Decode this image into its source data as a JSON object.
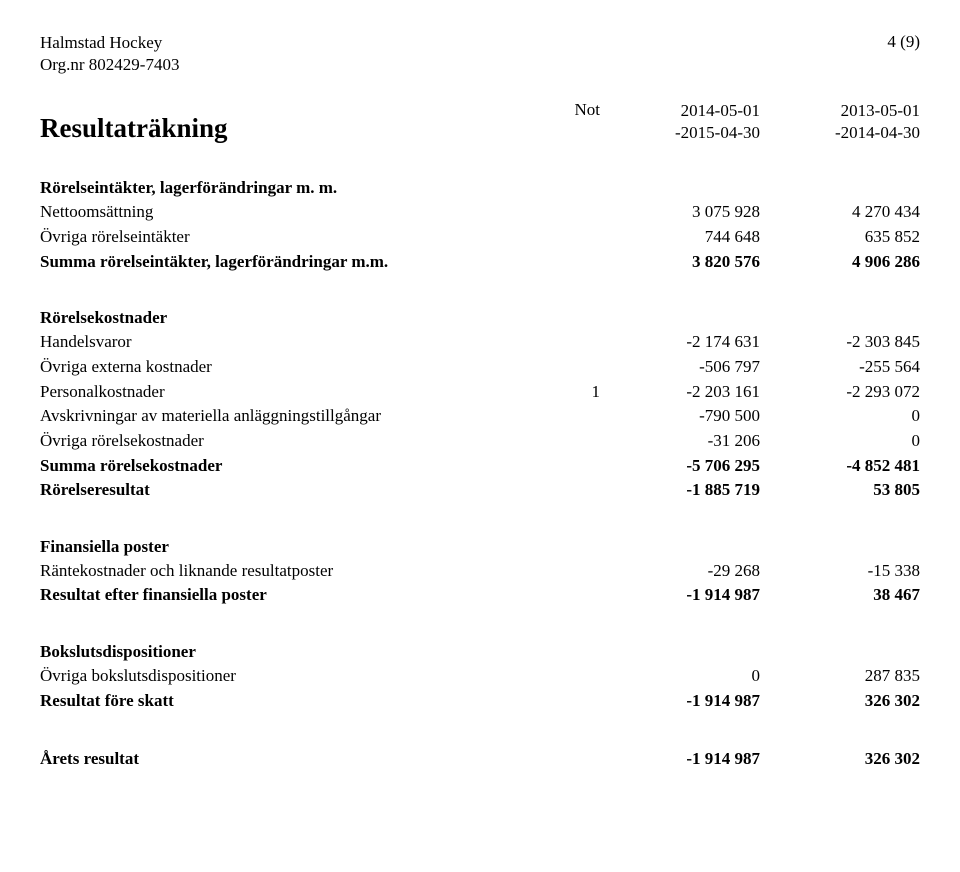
{
  "header": {
    "company": "Halmstad Hockey",
    "orgnr": "Org.nr 802429-7403",
    "page": "4 (9)"
  },
  "title": "Resultaträkning",
  "columns": {
    "note_label": "Not",
    "period1_top": "2014-05-01",
    "period1_bottom": "-2015-04-30",
    "period2_top": "2013-05-01",
    "period2_bottom": "-2014-04-30"
  },
  "sections": {
    "revenue": {
      "heading": "Rörelseintäkter, lagerförändringar m. m.",
      "rows": {
        "net_sales": {
          "label": "Nettoomsättning",
          "c1": "3 075 928",
          "c2": "4 270 434"
        },
        "other_rev": {
          "label": "Övriga rörelseintäkter",
          "c1": "744 648",
          "c2": "635 852"
        },
        "sum_rev": {
          "label": "Summa rörelseintäkter, lagerförändringar m.m.",
          "c1": "3 820 576",
          "c2": "4 906 286"
        }
      }
    },
    "costs": {
      "heading": "Rörelsekostnader",
      "rows": {
        "goods": {
          "label": "Handelsvaror",
          "c1": "-2 174 631",
          "c2": "-2 303 845"
        },
        "extern": {
          "label": "Övriga externa kostnader",
          "c1": "-506 797",
          "c2": "-255 564"
        },
        "pers": {
          "label": "Personalkostnader",
          "note": "1",
          "c1": "-2 203 161",
          "c2": "-2 293 072"
        },
        "depr": {
          "label": "Avskrivningar av materiella anläggningstillgångar",
          "c1": "-790 500",
          "c2": "0"
        },
        "other_c": {
          "label": "Övriga rörelsekostnader",
          "c1": "-31 206",
          "c2": "0"
        },
        "sum_c": {
          "label": "Summa rörelsekostnader",
          "c1": "-5 706 295",
          "c2": "-4 852 481"
        },
        "op_res": {
          "label": "Rörelseresultat",
          "c1": "-1 885 719",
          "c2": "53 805"
        }
      }
    },
    "fin": {
      "heading": "Finansiella poster",
      "rows": {
        "int_cost": {
          "label": "Räntekostnader och liknande resultatposter",
          "c1": "-29 268",
          "c2": "-15 338"
        },
        "res_fin": {
          "label": "Resultat efter finansiella poster",
          "c1": "-1 914 987",
          "c2": "38 467"
        }
      }
    },
    "disp": {
      "heading": "Bokslutsdispositioner",
      "rows": {
        "other_d": {
          "label": "Övriga bokslutsdispositioner",
          "c1": "0",
          "c2": "287 835"
        },
        "pre_tax": {
          "label": "Resultat före skatt",
          "c1": "-1 914 987",
          "c2": "326 302"
        }
      }
    },
    "year": {
      "row": {
        "label": "Årets resultat",
        "c1": "-1 914 987",
        "c2": "326 302"
      }
    }
  }
}
